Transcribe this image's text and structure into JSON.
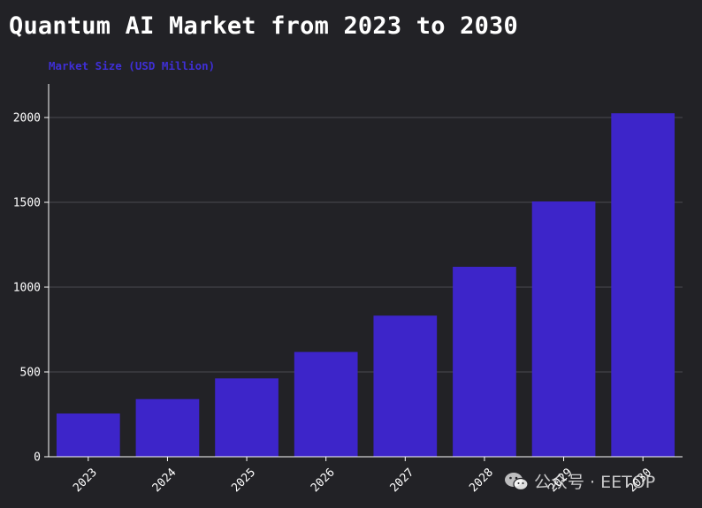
{
  "chart_data": {
    "type": "bar",
    "title": "Quantum AI Market from 2023 to 2030",
    "ylabel": "Market Size (USD Million)",
    "xlabel": "",
    "categories": [
      "2023",
      "2024",
      "2025",
      "2026",
      "2027",
      "2028",
      "2029",
      "2030"
    ],
    "values": [
      255,
      340,
      462,
      618,
      832,
      1120,
      1505,
      2025
    ],
    "ylim": [
      0,
      2250
    ],
    "yticks": [
      0,
      500,
      1000,
      1500,
      2000
    ],
    "grid": true,
    "bar_color": "#3d25c9",
    "grid_color": "#4a4a50",
    "axis_color": "#ffffff"
  },
  "watermark": {
    "text": "公众号 · EETOP",
    "icon": "wechat-icon"
  }
}
